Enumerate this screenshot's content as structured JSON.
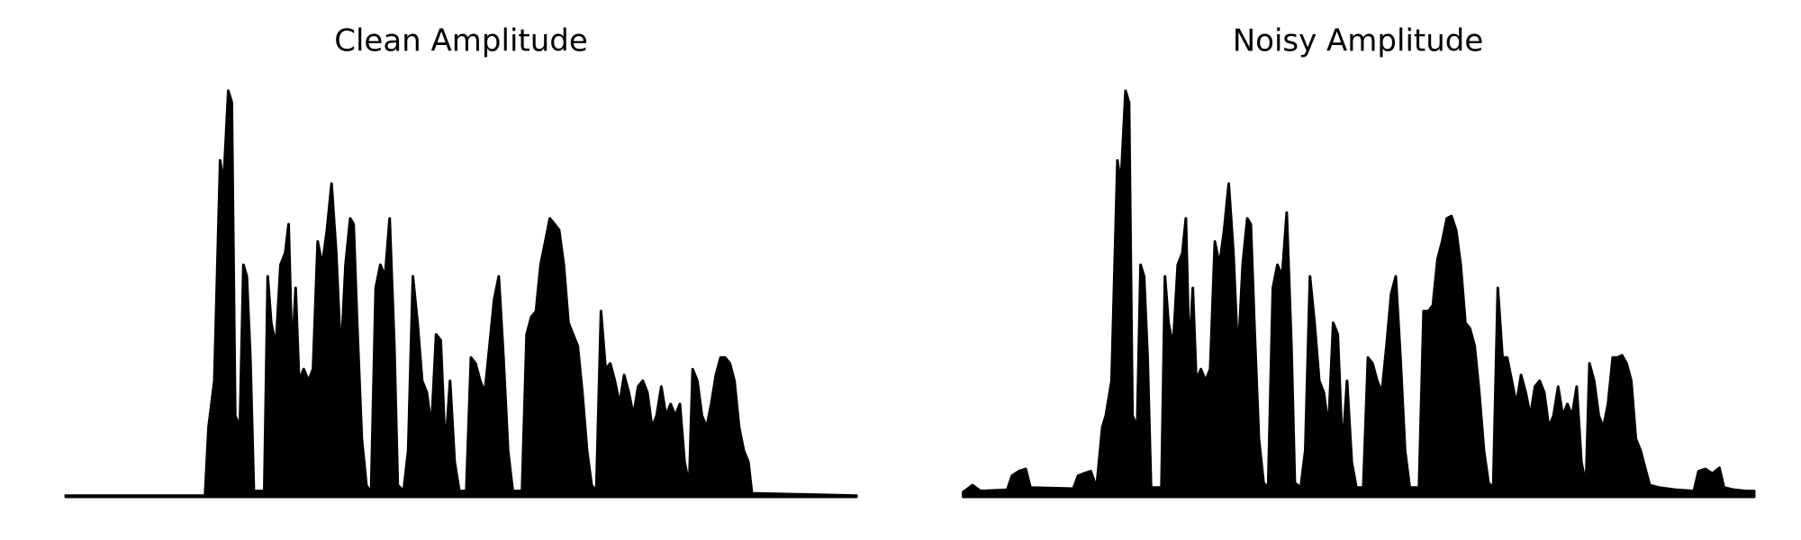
{
  "chart_data": [
    {
      "type": "area",
      "title": "Clean Amplitude",
      "color": "#000000",
      "xlim": [
        57,
        738
      ],
      "ylim": [
        0,
        360
      ],
      "x": [
        57,
        177,
        180,
        185,
        190,
        193,
        197,
        200,
        203,
        207,
        210,
        213,
        216,
        219,
        228,
        231,
        234,
        238,
        242,
        246,
        249,
        252,
        255,
        258,
        262,
        266,
        270,
        274,
        278,
        282,
        286,
        290,
        294,
        298,
        302,
        305,
        308,
        312,
        316,
        320,
        324,
        328,
        332,
        336,
        340,
        343,
        348,
        352,
        356,
        360,
        364,
        368,
        372,
        376,
        380,
        384,
        388,
        392,
        396,
        402,
        406,
        410,
        414,
        418,
        422,
        426,
        430,
        434,
        438,
        442,
        450,
        454,
        458,
        462,
        466,
        470,
        474,
        478,
        482,
        486,
        490,
        494,
        498,
        502,
        506,
        510,
        514,
        518,
        522,
        526,
        530,
        534,
        538,
        542,
        546,
        550,
        554,
        558,
        562,
        566,
        570,
        574,
        578,
        582,
        586,
        590,
        594,
        597,
        601,
        605,
        609,
        613,
        617,
        621,
        625,
        629,
        633,
        637,
        641,
        645,
        648,
        738
      ],
      "values": [
        1,
        1,
        60,
        100,
        290,
        270,
        350,
        340,
        70,
        60,
        200,
        190,
        120,
        5,
        5,
        190,
        150,
        130,
        200,
        210,
        235,
        120,
        180,
        100,
        110,
        100,
        110,
        220,
        200,
        230,
        270,
        210,
        120,
        200,
        240,
        235,
        150,
        50,
        10,
        3,
        180,
        200,
        190,
        240,
        130,
        10,
        5,
        40,
        190,
        150,
        100,
        90,
        60,
        140,
        135,
        40,
        100,
        30,
        5,
        5,
        120,
        115,
        100,
        90,
        130,
        170,
        190,
        120,
        40,
        5,
        5,
        140,
        155,
        160,
        200,
        220,
        240,
        235,
        230,
        200,
        150,
        140,
        130,
        90,
        40,
        10,
        5,
        160,
        110,
        115,
        100,
        80,
        105,
        90,
        70,
        95,
        100,
        90,
        60,
        70,
        95,
        70,
        80,
        70,
        80,
        30,
        10,
        110,
        100,
        70,
        60,
        80,
        105,
        120,
        120,
        115,
        100,
        60,
        40,
        30,
        3,
        1
      ]
    },
    {
      "type": "area",
      "title": "Noisy Amplitude",
      "color": "#000000",
      "xlim": [
        828,
        1512
      ],
      "ylim": [
        0,
        360
      ],
      "x": [
        830,
        838,
        845,
        868,
        872,
        878,
        884,
        888,
        925,
        929,
        934,
        940,
        945,
        950,
        953,
        958,
        963,
        966,
        970,
        973,
        976,
        980,
        983,
        986,
        989,
        992,
        1001,
        1004,
        1007,
        1011,
        1015,
        1019,
        1022,
        1025,
        1028,
        1031,
        1035,
        1039,
        1043,
        1047,
        1051,
        1055,
        1059,
        1063,
        1067,
        1071,
        1075,
        1078,
        1081,
        1085,
        1089,
        1093,
        1097,
        1101,
        1105,
        1109,
        1113,
        1116,
        1121,
        1125,
        1129,
        1133,
        1137,
        1141,
        1145,
        1149,
        1153,
        1157,
        1161,
        1165,
        1169,
        1175,
        1179,
        1183,
        1187,
        1191,
        1195,
        1199,
        1203,
        1207,
        1211,
        1215,
        1223,
        1227,
        1231,
        1235,
        1239,
        1243,
        1247,
        1251,
        1255,
        1259,
        1263,
        1267,
        1271,
        1275,
        1279,
        1283,
        1287,
        1291,
        1295,
        1299,
        1303,
        1307,
        1311,
        1315,
        1319,
        1323,
        1327,
        1331,
        1335,
        1339,
        1343,
        1347,
        1351,
        1355,
        1359,
        1363,
        1367,
        1370,
        1374,
        1378,
        1382,
        1386,
        1390,
        1394,
        1398,
        1402,
        1406,
        1410,
        1414,
        1418,
        1422,
        1430,
        1445,
        1460,
        1464,
        1470,
        1476,
        1482,
        1486,
        1495,
        1505,
        1512
      ],
      "values": [
        4,
        10,
        5,
        6,
        18,
        22,
        24,
        8,
        7,
        18,
        20,
        22,
        8,
        60,
        70,
        100,
        290,
        270,
        350,
        340,
        70,
        60,
        200,
        190,
        120,
        8,
        8,
        190,
        150,
        130,
        200,
        210,
        240,
        120,
        180,
        100,
        110,
        100,
        110,
        220,
        200,
        230,
        270,
        210,
        120,
        200,
        240,
        235,
        150,
        50,
        12,
        8,
        180,
        200,
        190,
        245,
        130,
        12,
        8,
        40,
        190,
        150,
        100,
        90,
        60,
        150,
        140,
        40,
        100,
        30,
        8,
        8,
        120,
        115,
        100,
        90,
        130,
        175,
        190,
        120,
        40,
        8,
        8,
        160,
        160,
        165,
        205,
        220,
        240,
        242,
        230,
        200,
        150,
        145,
        130,
        90,
        40,
        12,
        8,
        180,
        120,
        120,
        100,
        80,
        105,
        90,
        70,
        95,
        100,
        90,
        60,
        70,
        95,
        70,
        80,
        70,
        95,
        30,
        10,
        115,
        100,
        70,
        60,
        80,
        120,
        120,
        122,
        115,
        100,
        50,
        40,
        25,
        10,
        8,
        6,
        5,
        22,
        24,
        20,
        25,
        8,
        6,
        5,
        5
      ]
    }
  ]
}
